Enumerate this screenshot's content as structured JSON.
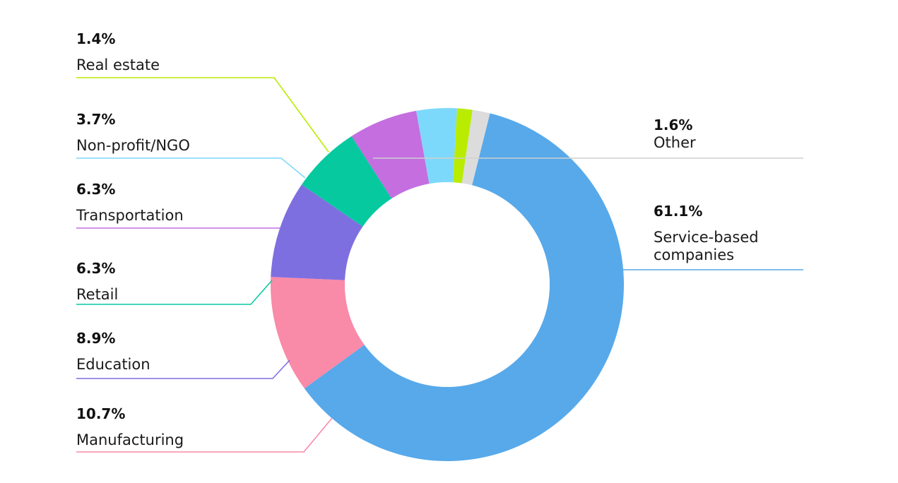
{
  "chart_data": {
    "type": "pie",
    "variant": "donut",
    "slices": [
      {
        "key": "service",
        "label": "Service-based companies",
        "label_lines": [
          "Service-based",
          "companies"
        ],
        "value": 61.1,
        "value_label": "61.1%",
        "color": "#57a9ea"
      },
      {
        "key": "manufacturing",
        "label": "Manufacturing",
        "label_lines": [
          "Manufacturing"
        ],
        "value": 10.7,
        "value_label": "10.7%",
        "color": "#f98aa8"
      },
      {
        "key": "education",
        "label": "Education",
        "label_lines": [
          "Education"
        ],
        "value": 8.9,
        "value_label": "8.9%",
        "color": "#7e6fe0"
      },
      {
        "key": "retail",
        "label": "Retail",
        "label_lines": [
          "Retail"
        ],
        "value": 6.3,
        "value_label": "6.3%",
        "color": "#06c9a0"
      },
      {
        "key": "transportation",
        "label": "Transportation",
        "label_lines": [
          "Transportation"
        ],
        "value": 6.3,
        "value_label": "6.3%",
        "color": "#c46ee0"
      },
      {
        "key": "nonprofit",
        "label": "Non-profit/NGO",
        "label_lines": [
          "Non-profit/NGO"
        ],
        "value": 3.7,
        "value_label": "3.7%",
        "color": "#7dd9fb"
      },
      {
        "key": "realestate",
        "label": "Real estate",
        "label_lines": [
          "Real estate"
        ],
        "value": 1.4,
        "value_label": "1.4%",
        "color": "#b9ec00"
      },
      {
        "key": "other",
        "label": "Other",
        "label_lines": [
          "Other"
        ],
        "value": 1.6,
        "value_label": "1.6%",
        "color": "#dcdcdc"
      }
    ],
    "start_at": "top, just right of center",
    "direction": "clockwise",
    "legend": "callout labels with leader lines"
  }
}
